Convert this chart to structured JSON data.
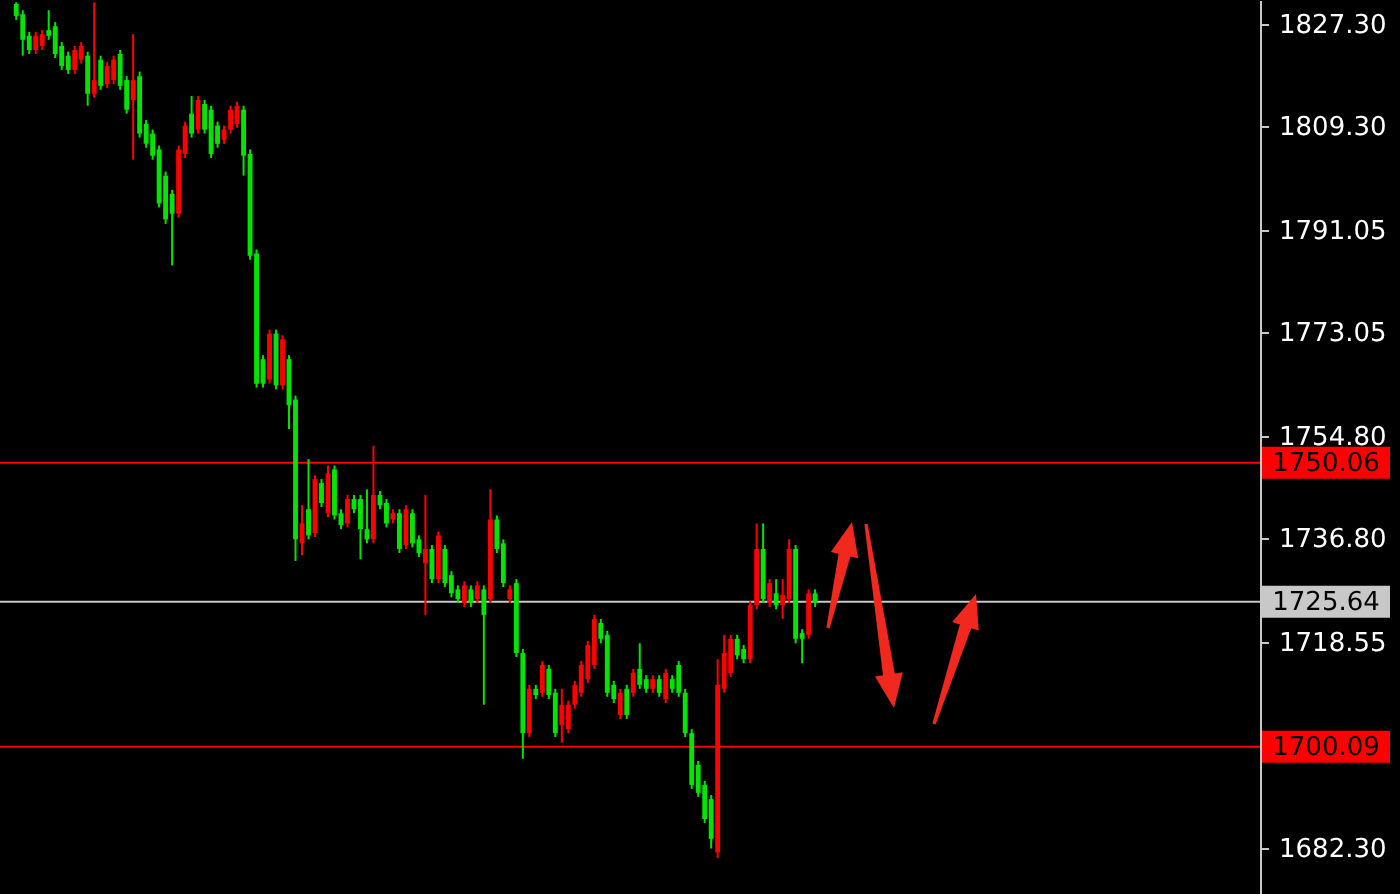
{
  "chart_data": {
    "type": "candlestick",
    "categories": [
      null,
      null,
      null,
      null,
      null,
      null,
      null,
      null,
      null,
      null,
      null,
      null,
      null,
      null,
      null,
      null,
      null,
      null,
      null,
      null,
      null,
      null,
      null,
      null,
      null,
      null,
      null,
      null,
      null,
      null,
      null,
      null,
      null,
      null,
      null,
      null,
      null,
      null,
      null,
      null,
      null,
      null,
      null,
      null,
      null,
      null,
      null,
      null,
      null,
      null,
      null,
      null,
      null,
      null,
      null,
      null,
      null,
      null,
      null,
      null,
      null,
      null,
      null,
      null,
      null,
      null,
      null,
      null,
      null,
      null,
      null,
      null,
      null,
      null,
      null,
      null,
      null,
      null,
      null,
      null,
      null,
      null,
      null,
      null,
      null,
      null,
      null,
      null,
      null,
      null,
      null,
      null,
      null,
      null,
      null,
      null,
      null,
      null,
      null,
      null,
      null,
      null,
      null,
      null,
      null,
      null,
      null,
      null,
      null,
      null,
      null,
      null,
      null,
      null,
      null,
      null,
      null,
      null,
      null,
      null,
      null,
      null,
      null,
      null,
      null,
      null,
      null,
      null,
      null,
      null,
      null,
      null,
      null,
      null,
      null,
      null,
      null,
      null,
      null,
      null,
      null,
      null,
      null,
      null,
      null,
      null,
      null,
      null,
      null,
      null,
      null,
      null,
      null,
      null,
      null,
      null,
      null,
      null,
      null,
      null,
      null,
      null,
      null,
      null,
      null,
      null,
      null,
      null,
      null,
      null,
      null,
      null,
      null,
      null,
      null,
      null,
      null,
      null,
      null,
      null,
      null,
      null,
      null,
      null,
      null,
      null,
      null,
      null,
      null,
      null,
      null,
      null,
      null,
      null
    ],
    "ohlc": [
      null,
      null,
      [
        1830.8,
        1831.1,
        1828.0,
        1828.7
      ],
      [
        1829.0,
        1829.7,
        1821.7,
        1824.5
      ],
      [
        1825.2,
        1825.9,
        1822.0,
        1822.7
      ],
      [
        1822.7,
        1825.9,
        1822.0,
        1825.2
      ],
      [
        1823.4,
        1826.2,
        1822.7,
        1825.5
      ],
      [
        1826.2,
        1829.7,
        1824.5,
        1825.2
      ],
      [
        1826.9,
        1827.6,
        1821.3,
        1822.0
      ],
      [
        1823.4,
        1824.1,
        1819.2,
        1819.9
      ],
      [
        1821.7,
        1822.4,
        1818.5,
        1819.2
      ],
      [
        1819.2,
        1823.4,
        1818.5,
        1822.7
      ],
      [
        1821.0,
        1824.1,
        1820.3,
        1823.4
      ],
      [
        1821.7,
        1822.4,
        1812.9,
        1815.0
      ],
      [
        1815.0,
        1831.1,
        1814.3,
        1817.4
      ],
      [
        1821.0,
        1821.7,
        1815.7,
        1816.4
      ],
      [
        1816.7,
        1820.6,
        1816.0,
        1819.9
      ],
      [
        1817.4,
        1821.7,
        1816.7,
        1821.0
      ],
      [
        1822.0,
        1822.7,
        1815.7,
        1816.4
      ],
      [
        1817.4,
        1818.1,
        1811.5,
        1812.2
      ],
      [
        1813.9,
        1825.5,
        1803.4,
        1817.4
      ],
      [
        1818.1,
        1818.9,
        1807.3,
        1808.0
      ],
      [
        1809.7,
        1810.4,
        1805.5,
        1806.2
      ],
      [
        1808.0,
        1808.7,
        1803.4,
        1804.1
      ],
      [
        1805.2,
        1805.9,
        1795.0,
        1795.7
      ],
      [
        1800.6,
        1801.3,
        1792.1,
        1792.9
      ],
      [
        1797.4,
        1798.1,
        1784.8,
        1793.9
      ],
      [
        1793.9,
        1805.9,
        1793.2,
        1805.2
      ],
      [
        1804.4,
        1810.1,
        1803.7,
        1809.4
      ],
      [
        1811.5,
        1814.6,
        1807.3,
        1808.0
      ],
      [
        1808.7,
        1814.6,
        1808.0,
        1813.9
      ],
      [
        1813.2,
        1813.9,
        1808.0,
        1808.7
      ],
      [
        1812.2,
        1812.9,
        1803.7,
        1804.4
      ],
      [
        1809.4,
        1810.1,
        1805.5,
        1806.2
      ],
      [
        1806.9,
        1809.4,
        1806.2,
        1808.7
      ],
      [
        1808.7,
        1812.9,
        1808.0,
        1812.2
      ],
      [
        1809.7,
        1813.6,
        1809.0,
        1812.9
      ],
      [
        1812.2,
        1812.9,
        1800.6,
        1804.1
      ],
      [
        1804.4,
        1805.2,
        1785.8,
        1786.5
      ],
      [
        1786.9,
        1787.6,
        1763.3,
        1764.0
      ],
      [
        1768.3,
        1769.0,
        1763.3,
        1764.0
      ],
      [
        1764.7,
        1773.5,
        1764.0,
        1772.8
      ],
      [
        1772.8,
        1773.5,
        1763.0,
        1763.7
      ],
      [
        1763.7,
        1772.5,
        1763.0,
        1771.8
      ],
      [
        1768.3,
        1769.0,
        1756.0,
        1760.2
      ],
      [
        1761.2,
        1761.9,
        1732.8,
        1736.6
      ],
      [
        1735.9,
        1742.6,
        1733.8,
        1739.4
      ],
      [
        1741.9,
        1750.7,
        1736.6,
        1737.3
      ],
      [
        1737.7,
        1747.9,
        1737.0,
        1747.2
      ],
      [
        1746.5,
        1747.2,
        1742.3,
        1743.0
      ],
      [
        1741.2,
        1749.6,
        1740.5,
        1748.2
      ],
      [
        1748.9,
        1749.6,
        1740.1,
        1740.8
      ],
      [
        1741.2,
        1741.9,
        1738.4,
        1739.1
      ],
      [
        1739.4,
        1744.4,
        1738.7,
        1743.7
      ],
      [
        1743.7,
        1744.4,
        1741.2,
        1741.9
      ],
      [
        1743.7,
        1744.4,
        1733.1,
        1738.4
      ],
      [
        1738.4,
        1745.4,
        1735.9,
        1736.6
      ],
      [
        1736.6,
        1753.1,
        1735.9,
        1744.4
      ],
      [
        1744.4,
        1745.1,
        1741.9,
        1742.6
      ],
      [
        1743.0,
        1743.7,
        1738.7,
        1739.4
      ],
      [
        1740.1,
        1741.9,
        1739.4,
        1741.2
      ],
      [
        1741.2,
        1741.9,
        1734.2,
        1734.9
      ],
      [
        1735.6,
        1742.6,
        1734.9,
        1741.9
      ],
      [
        1741.2,
        1741.9,
        1735.2,
        1735.9
      ],
      [
        1736.6,
        1737.3,
        1733.5,
        1734.2
      ],
      [
        1732.4,
        1744.4,
        1723.3,
        1734.9
      ],
      [
        1734.9,
        1735.6,
        1728.9,
        1729.6
      ],
      [
        1729.6,
        1738.0,
        1728.9,
        1737.3
      ],
      [
        1734.9,
        1735.6,
        1728.2,
        1728.9
      ],
      [
        1730.3,
        1731.0,
        1726.4,
        1727.1
      ],
      [
        1727.8,
        1728.5,
        1725.4,
        1726.1
      ],
      [
        1725.4,
        1729.2,
        1724.7,
        1728.5
      ],
      [
        1727.8,
        1728.5,
        1724.7,
        1725.4
      ],
      [
        1726.1,
        1729.2,
        1725.4,
        1728.5
      ],
      [
        1727.8,
        1728.5,
        1707.5,
        1723.3
      ],
      [
        1726.1,
        1745.4,
        1725.4,
        1740.1
      ],
      [
        1740.1,
        1740.8,
        1734.2,
        1734.9
      ],
      [
        1735.9,
        1736.6,
        1728.2,
        1728.9
      ],
      [
        1726.1,
        1728.5,
        1725.4,
        1727.8
      ],
      [
        1728.9,
        1729.6,
        1715.9,
        1716.6
      ],
      [
        1716.6,
        1717.3,
        1698.0,
        1702.5
      ],
      [
        1702.5,
        1711.0,
        1701.8,
        1710.3
      ],
      [
        1710.3,
        1711.0,
        1708.5,
        1709.2
      ],
      [
        1709.6,
        1715.2,
        1708.9,
        1714.5
      ],
      [
        1713.8,
        1714.5,
        1708.5,
        1709.2
      ],
      [
        1709.6,
        1710.3,
        1701.8,
        1702.5
      ],
      [
        1703.9,
        1710.3,
        1700.8,
        1707.5
      ],
      [
        1703.2,
        1708.2,
        1702.5,
        1707.5
      ],
      [
        1707.5,
        1711.7,
        1706.8,
        1711.0
      ],
      [
        1709.6,
        1715.2,
        1708.9,
        1714.5
      ],
      [
        1712.0,
        1718.7,
        1711.3,
        1718.0
      ],
      [
        1714.5,
        1723.3,
        1713.8,
        1722.6
      ],
      [
        1721.9,
        1722.6,
        1718.3,
        1719.1
      ],
      [
        1719.8,
        1720.5,
        1708.9,
        1709.6
      ],
      [
        1711.0,
        1711.7,
        1707.8,
        1708.5
      ],
      [
        1705.7,
        1710.3,
        1705.0,
        1709.6
      ],
      [
        1710.3,
        1711.0,
        1705.0,
        1705.7
      ],
      [
        1709.6,
        1713.8,
        1708.9,
        1713.1
      ],
      [
        1713.8,
        1718.3,
        1710.3,
        1711.0
      ],
      [
        1712.0,
        1712.7,
        1709.6,
        1710.3
      ],
      [
        1710.3,
        1712.7,
        1709.6,
        1712.0
      ],
      [
        1712.0,
        1712.7,
        1708.9,
        1709.6
      ],
      [
        1708.5,
        1713.8,
        1707.8,
        1713.1
      ],
      [
        1712.0,
        1712.7,
        1709.6,
        1710.3
      ],
      [
        1714.5,
        1715.2,
        1708.9,
        1709.6
      ],
      [
        1709.6,
        1710.3,
        1701.8,
        1702.5
      ],
      [
        1702.5,
        1703.2,
        1692.7,
        1693.4
      ],
      [
        1696.9,
        1697.6,
        1691.3,
        1692.0
      ],
      [
        1693.4,
        1694.1,
        1686.7,
        1687.4
      ],
      [
        1690.9,
        1691.6,
        1682.2,
        1683.9
      ],
      [
        1681.5,
        1715.5,
        1680.5,
        1711.0
      ],
      [
        1710.3,
        1719.8,
        1709.6,
        1716.6
      ],
      [
        1713.1,
        1719.8,
        1712.4,
        1719.1
      ],
      [
        1719.1,
        1719.8,
        1715.5,
        1716.2
      ],
      [
        1717.3,
        1718.0,
        1714.8,
        1715.5
      ],
      [
        1715.5,
        1725.7,
        1714.8,
        1725.0
      ],
      [
        1725.0,
        1739.4,
        1724.3,
        1734.9
      ],
      [
        1734.9,
        1739.4,
        1725.4,
        1726.1
      ],
      [
        1725.4,
        1729.6,
        1724.7,
        1728.9
      ],
      [
        1727.1,
        1729.6,
        1724.3,
        1725.0
      ],
      [
        1725.0,
        1729.6,
        1722.6,
        1726.8
      ],
      [
        1726.1,
        1736.6,
        1725.4,
        1734.9
      ],
      [
        1734.9,
        1735.6,
        1718.3,
        1719.1
      ],
      [
        1720.1,
        1720.8,
        1714.8,
        1719.1
      ],
      [
        1719.8,
        1727.8,
        1719.1,
        1727.1
      ],
      [
        1727.1,
        1727.8,
        1724.7,
        1725.4
      ],
      null,
      null,
      null,
      null,
      null,
      null,
      null,
      null,
      null,
      null,
      null,
      null,
      null,
      null,
      null,
      null,
      null,
      null,
      null,
      null,
      null,
      null,
      null,
      null,
      null,
      null,
      null,
      null,
      null,
      null,
      null,
      null,
      null,
      null,
      null,
      null,
      null,
      null,
      null,
      null,
      null,
      null,
      null,
      null,
      null,
      null,
      null,
      null,
      null,
      null,
      null,
      null,
      null,
      null,
      null,
      null,
      null,
      null,
      null,
      null,
      null,
      null,
      null,
      null,
      null,
      null,
      null,
      null
    ],
    "colors": [
      null,
      null,
      "#00e600",
      "#00e600",
      "#00e600",
      "#ff0000",
      "#ff0000",
      "#00e600",
      "#00e600",
      "#00e600",
      "#00e600",
      "#ff0000",
      "#ff0000",
      "#00e600",
      "#ff0000",
      "#00e600",
      "#ff0000",
      "#ff0000",
      "#00e600",
      "#00e600",
      "#ff0000",
      "#00e600",
      "#00e600",
      "#00e600",
      "#00e600",
      "#00e600",
      "#00e600",
      "#ff0000",
      "#ff0000",
      "#00e600",
      "#ff0000",
      "#00e600",
      "#00e600",
      "#00e600",
      "#ff0000",
      "#ff0000",
      "#ff0000",
      "#00e600",
      "#00e600",
      "#00e600",
      "#00e600",
      "#ff0000",
      "#00e600",
      "#ff0000",
      "#00e600",
      "#00e600",
      "#ff0000",
      "#00e600",
      "#ff0000",
      "#00e600",
      "#ff0000",
      "#00e600",
      "#00e600",
      "#ff0000",
      "#00e600",
      "#00e600",
      "#00e600",
      "#ff0000",
      "#00e600",
      "#00e600",
      "#ff0000",
      "#00e600",
      "#ff0000",
      "#00e600",
      "#00e600",
      "#ff0000",
      "#00e600",
      "#ff0000",
      "#00e600",
      "#00e600",
      "#00e600",
      "#ff0000",
      "#00e600",
      "#ff0000",
      "#00e600",
      "#ff0000",
      "#00e600",
      "#00e600",
      "#ff0000",
      "#00e600",
      "#00e600",
      "#ff0000",
      "#00e600",
      "#ff0000",
      "#00e600",
      "#00e600",
      "#ff0000",
      "#ff0000",
      "#ff0000",
      "#ff0000",
      "#ff0000",
      "#ff0000",
      "#00e600",
      "#00e600",
      "#00e600",
      "#ff0000",
      "#00e600",
      "#ff0000",
      "#00e600",
      "#00e600",
      "#ff0000",
      "#00e600",
      "#ff0000",
      "#00e600",
      "#00e600",
      "#00e600",
      "#00e600",
      "#00e600",
      "#00e600",
      "#00e600",
      "#ff0000",
      "#ff0000",
      "#ff0000",
      "#00e600",
      "#00e600",
      "#ff0000",
      "#ff0000",
      "#00e600",
      "#ff0000",
      "#00e600",
      "#ff0000",
      "#ff0000",
      "#00e600",
      "#00e600",
      "#ff0000",
      "#00e600",
      null,
      null,
      null,
      null,
      null,
      null,
      null,
      null,
      null,
      null,
      null,
      null,
      null,
      null,
      null,
      null,
      null,
      null,
      null,
      null,
      null,
      null,
      null,
      null,
      null,
      null,
      null,
      null,
      null,
      null,
      null,
      null,
      null,
      null,
      null,
      null,
      null,
      null,
      null,
      null,
      null,
      null,
      null,
      null,
      null,
      null,
      null,
      null,
      null,
      null,
      null,
      null,
      null,
      null,
      null,
      null,
      null,
      null,
      null,
      null,
      null,
      null,
      null,
      null,
      null,
      null,
      null,
      null
    ],
    "ylim": [
      1674.2,
      1831.5
    ],
    "yticks": [
      {
        "value": 1682.3,
        "label": "1682.30"
      },
      {
        "value": 1718.55,
        "label": "1718.55"
      },
      {
        "value": 1736.8,
        "label": "1736.80"
      },
      {
        "value": 1754.8,
        "label": "1754.80"
      },
      {
        "value": 1773.05,
        "label": "1773.05"
      },
      {
        "value": 1791.05,
        "label": "1791.05"
      },
      {
        "value": 1809.3,
        "label": "1809.30"
      },
      {
        "value": 1827.3,
        "label": "1827.30"
      }
    ],
    "ref_lines": [
      {
        "axis": "y",
        "value": 1750.06,
        "label": "1750.06",
        "color": "#ff0000"
      },
      {
        "axis": "y",
        "value": 1725.64,
        "label": "1725.64",
        "color": "#c8c8c8"
      },
      {
        "axis": "y",
        "value": 1700.09,
        "label": "1700.09",
        "color": "#ff0000"
      }
    ],
    "tick_labels": "y"
  }
}
